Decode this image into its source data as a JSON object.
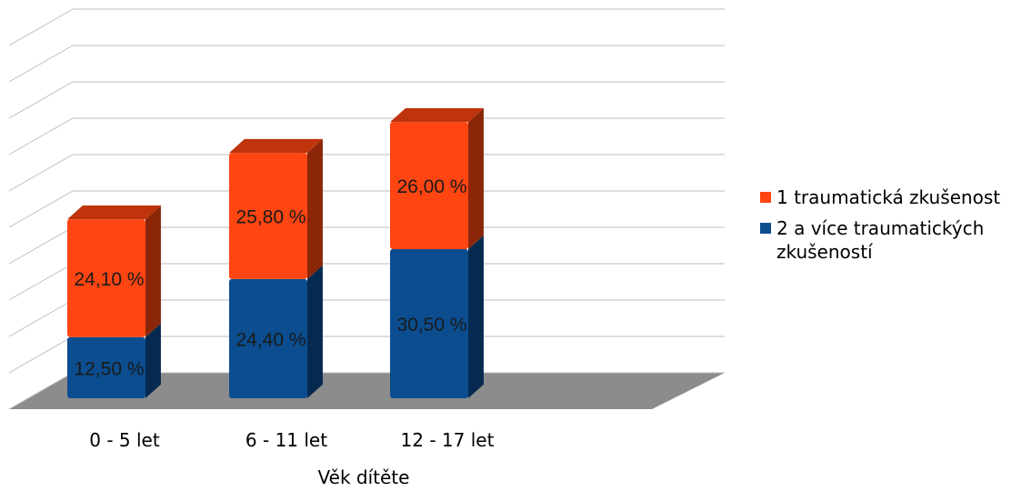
{
  "chart_data": {
    "type": "bar",
    "stacked": true,
    "three_d": true,
    "categories": [
      "0 - 5 let",
      "6 - 11 let",
      "12 - 17 let"
    ],
    "series": [
      {
        "name": "2 a více traumatických zkušeností",
        "values": [
          12.5,
          24.4,
          30.5
        ],
        "labels": [
          "12,50 %",
          "24,40 %",
          "30,50 %"
        ],
        "color": "#0b4d8f"
      },
      {
        "name": "1 traumatická zkušenost",
        "values": [
          24.1,
          25.8,
          26.0
        ],
        "labels": [
          "24,10 %",
          "25,80 %",
          "26,00 %"
        ],
        "color": "#ff4511"
      }
    ],
    "xlabel": "Věk dítěte",
    "ylabel": "",
    "ylim": [
      0,
      60
    ],
    "grid": true,
    "legend_position": "right"
  }
}
